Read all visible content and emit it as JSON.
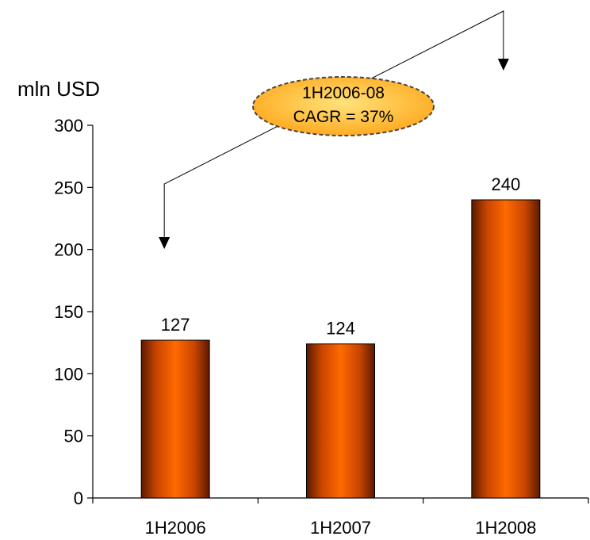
{
  "chart_data": {
    "type": "bar",
    "title": "",
    "xlabel": "",
    "ylabel": "mln USD",
    "categories": [
      "1H2006",
      "1H2007",
      "1H2008"
    ],
    "values": [
      127,
      124,
      240
    ],
    "ylim": [
      0,
      300
    ],
    "yticks": [
      0,
      50,
      100,
      150,
      200,
      250,
      300
    ],
    "grid": false,
    "legend": "none",
    "bar_color": "#ff6600",
    "bar_edge_color": "#5a1a00",
    "annotation": {
      "line1": "1H2006-08",
      "line2": "CAGR = 37%",
      "fill": "#ffb429",
      "from_category": "1H2006",
      "to_category": "1H2008"
    }
  }
}
